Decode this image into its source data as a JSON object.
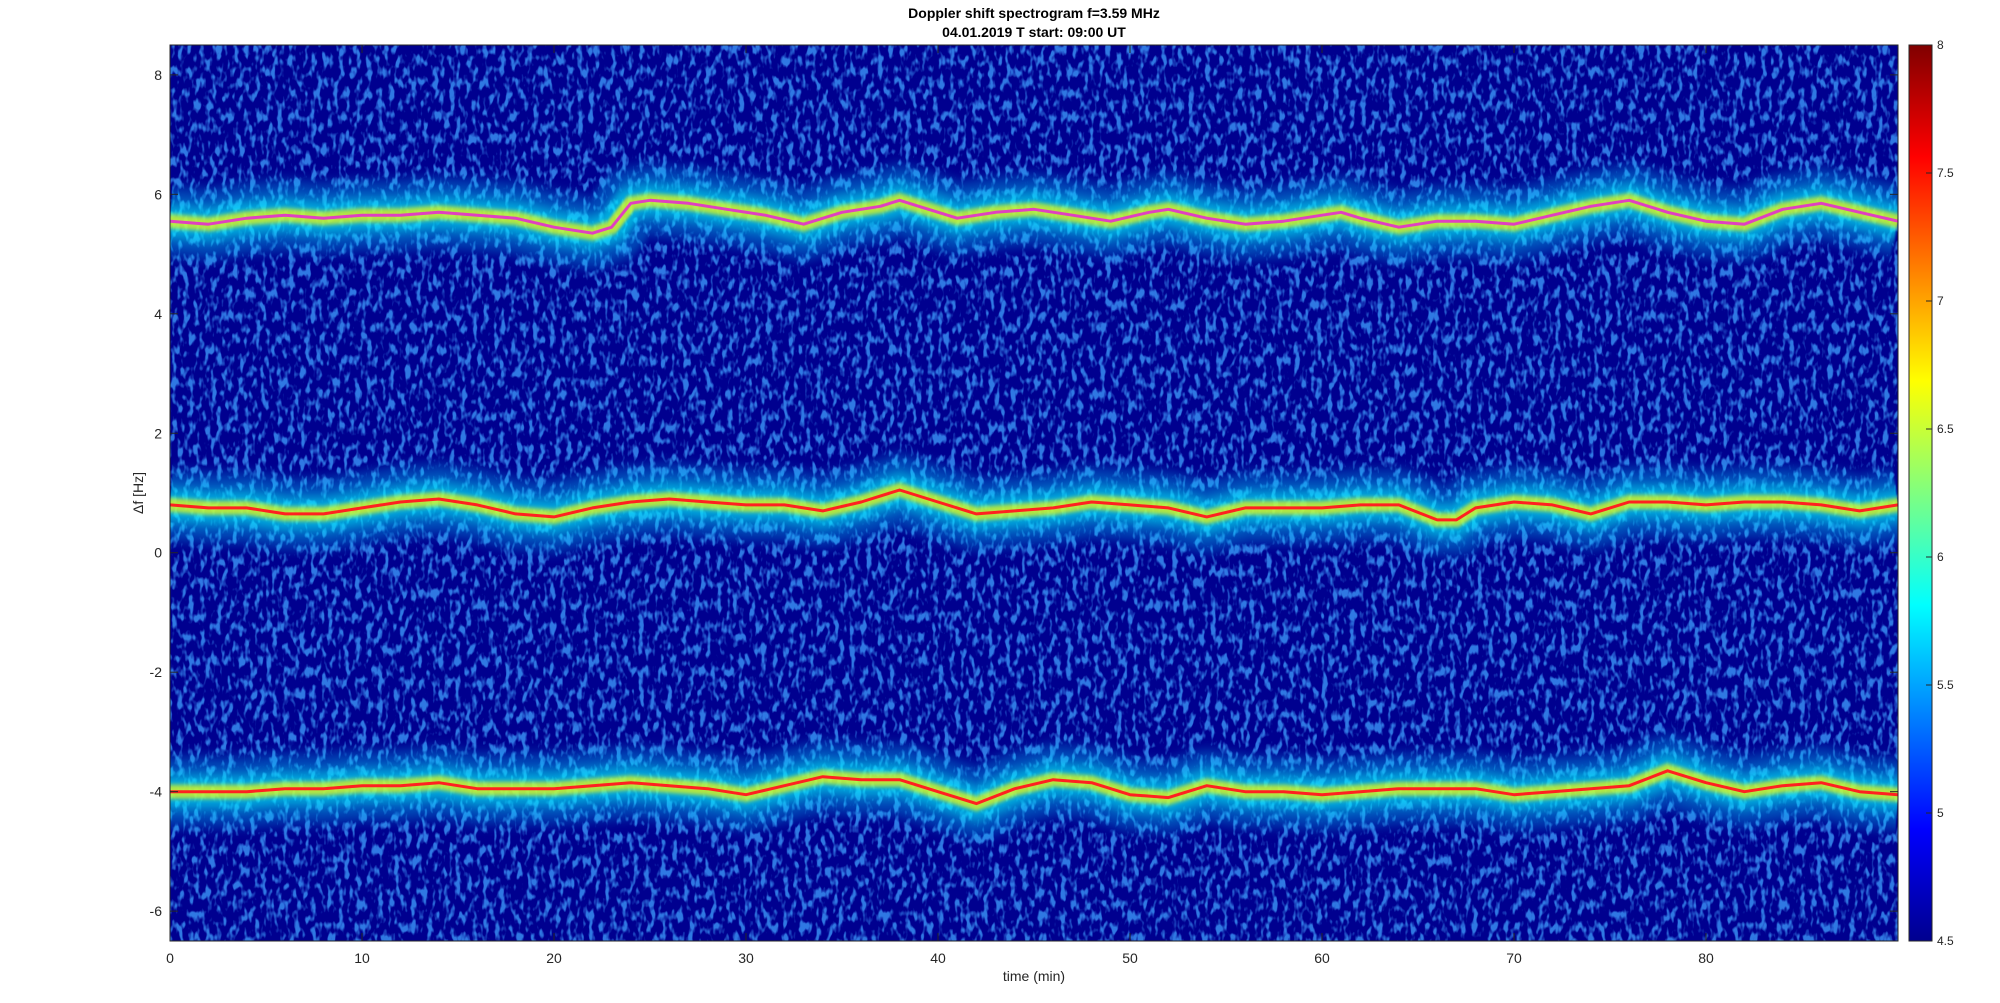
{
  "chart_data": {
    "type": "heatmap",
    "title": "Doppler shift spectrogram f=3.59 MHz",
    "subtitle": "04.01.2019   T start: 09:00 UT",
    "xlabel": "time (min)",
    "ylabel": "Δf [Hz]",
    "xlim": [
      0,
      90
    ],
    "ylim": [
      -6.5,
      8.5
    ],
    "x_ticks": [
      "0",
      "10",
      "20",
      "30",
      "40",
      "50",
      "60",
      "70",
      "80"
    ],
    "y_ticks": [
      "8",
      "6",
      "4",
      "2",
      "0",
      "-2",
      "-4",
      "-6"
    ],
    "colorbar": {
      "colormap": "jet",
      "range": [
        4.5,
        8
      ],
      "ticks": [
        "8",
        "7.5",
        "7",
        "6.5",
        "6",
        "5.5",
        "5",
        "4.5"
      ]
    },
    "series": [
      {
        "x": [
          0,
          2,
          4,
          6,
          8,
          10,
          12,
          14,
          16,
          18,
          20,
          22,
          23,
          24,
          25,
          27,
          29,
          31,
          33,
          35,
          37,
          38,
          39,
          41,
          43,
          45,
          47,
          49,
          51,
          52,
          54,
          56,
          58,
          60,
          61,
          62,
          64,
          66,
          68,
          70,
          72,
          74,
          76,
          78,
          80,
          82,
          84,
          86,
          88,
          90
        ],
        "y": [
          5.55,
          5.5,
          5.6,
          5.65,
          5.6,
          5.65,
          5.65,
          5.7,
          5.65,
          5.6,
          5.45,
          5.35,
          5.45,
          5.85,
          5.9,
          5.85,
          5.75,
          5.65,
          5.5,
          5.7,
          5.8,
          5.9,
          5.8,
          5.6,
          5.7,
          5.75,
          5.65,
          5.55,
          5.7,
          5.75,
          5.6,
          5.5,
          5.55,
          5.65,
          5.7,
          5.6,
          5.45,
          5.55,
          5.55,
          5.5,
          5.65,
          5.8,
          5.9,
          5.7,
          5.55,
          5.5,
          5.75,
          5.85,
          5.7,
          5.55
        ],
        "color": "#e040c0"
      },
      {
        "x": [
          0,
          2,
          4,
          6,
          8,
          10,
          12,
          14,
          16,
          18,
          20,
          22,
          24,
          26,
          28,
          30,
          32,
          34,
          36,
          38,
          40,
          42,
          44,
          46,
          48,
          50,
          52,
          54,
          56,
          58,
          60,
          62,
          64,
          66,
          67,
          68,
          70,
          72,
          74,
          76,
          78,
          80,
          82,
          84,
          86,
          88,
          90
        ],
        "y": [
          0.8,
          0.75,
          0.75,
          0.65,
          0.65,
          0.75,
          0.85,
          0.9,
          0.8,
          0.65,
          0.6,
          0.75,
          0.85,
          0.9,
          0.85,
          0.8,
          0.8,
          0.7,
          0.85,
          1.05,
          0.85,
          0.65,
          0.7,
          0.75,
          0.85,
          0.8,
          0.75,
          0.6,
          0.75,
          0.75,
          0.75,
          0.8,
          0.8,
          0.55,
          0.55,
          0.75,
          0.85,
          0.8,
          0.65,
          0.85,
          0.85,
          0.8,
          0.85,
          0.85,
          0.8,
          0.7,
          0.8
        ],
        "color": "#ff2020"
      },
      {
        "x": [
          0,
          2,
          4,
          6,
          8,
          10,
          12,
          14,
          16,
          18,
          20,
          22,
          24,
          26,
          28,
          30,
          32,
          34,
          36,
          38,
          40,
          42,
          44,
          46,
          48,
          50,
          52,
          54,
          56,
          58,
          60,
          62,
          64,
          66,
          68,
          70,
          72,
          74,
          76,
          78,
          80,
          82,
          84,
          86,
          88,
          90
        ],
        "y": [
          -4.0,
          -4.0,
          -4.0,
          -3.95,
          -3.95,
          -3.9,
          -3.9,
          -3.85,
          -3.95,
          -3.95,
          -3.95,
          -3.9,
          -3.85,
          -3.9,
          -3.95,
          -4.05,
          -3.9,
          -3.75,
          -3.8,
          -3.8,
          -4.0,
          -4.2,
          -3.95,
          -3.8,
          -3.85,
          -4.05,
          -4.1,
          -3.9,
          -4.0,
          -4.0,
          -4.05,
          -4.0,
          -3.95,
          -3.95,
          -3.95,
          -4.05,
          -4.0,
          -3.95,
          -3.9,
          -3.65,
          -3.85,
          -4.0,
          -3.9,
          -3.85,
          -4.0,
          -4.05
        ],
        "color": "#ff2020"
      }
    ]
  }
}
